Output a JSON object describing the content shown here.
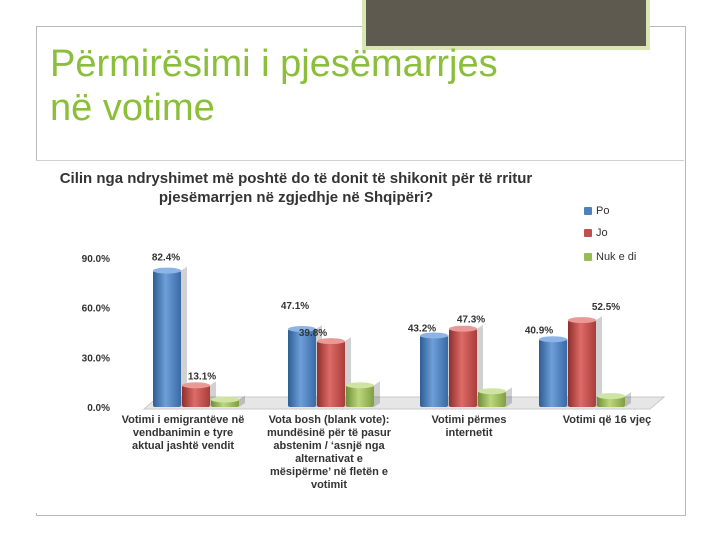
{
  "slide": {
    "title_line1": "Përmirësimi i pjesëmarrjes",
    "title_line2": "në votime"
  },
  "chart_data": {
    "type": "bar",
    "title": "Cilin nga ndryshimet më poshtë do të donit të shikonit  për të rritur pjesëmarrjen në zgjedhje në Shqipëri?",
    "categories": [
      "Votimi i emigrantëve në vendbanimin  e tyre aktual jashtë vendit",
      "Vota bosh (blank vote): mundësinë për të pasur abstenim / ‘asnjë nga alternativat e mësipërme’ në fletën e votimit",
      "Votimi përmes internetit",
      "Votimi që 16 vjeç"
    ],
    "series": [
      {
        "name": "Po",
        "values": [
          82.4,
          47.1,
          43.2,
          40.9
        ],
        "color": "#4f81bd"
      },
      {
        "name": "Jo",
        "values": [
          13.1,
          39.8,
          47.3,
          52.5
        ],
        "color": "#c0504d"
      },
      {
        "name": "Nuk e di",
        "values": [
          4.5,
          13.1,
          9.5,
          6.6
        ],
        "color": "#9bbb59"
      }
    ],
    "data_labels": [
      [
        "82.4%",
        "13.1%",
        null
      ],
      [
        "47.1%",
        "39.8%",
        null
      ],
      [
        "43.2%",
        "47.3%",
        null
      ],
      [
        "40.9%",
        "52.5%",
        null
      ]
    ],
    "yticks": [
      "0.0%",
      "30.0%",
      "60.0%",
      "90.0%"
    ],
    "ylim": [
      0,
      90
    ],
    "legend_position": "top-right",
    "grid": false
  }
}
